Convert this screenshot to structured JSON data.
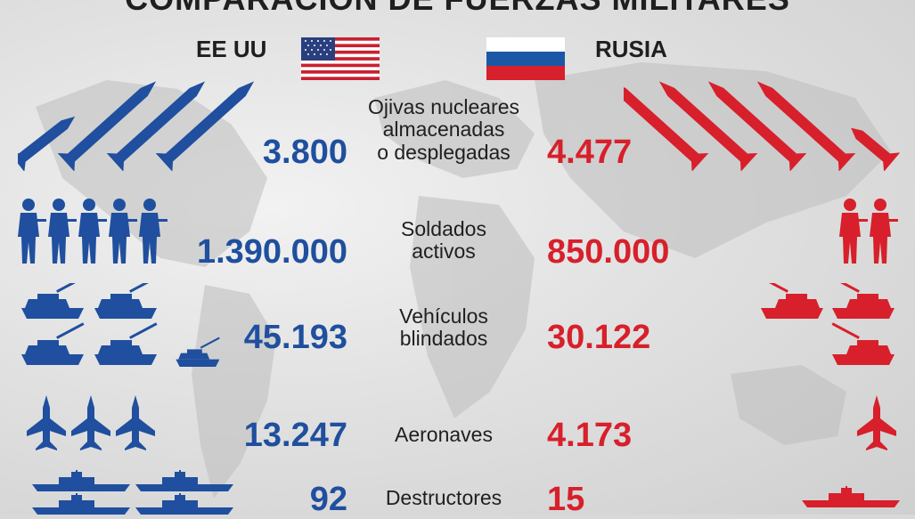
{
  "title": "COMPARACIÓN DE FUERZAS MILITARES",
  "usa": {
    "name": "EE UU",
    "flag": "us-flag",
    "color": "#1f4f9e"
  },
  "russia": {
    "name": "RUSIA",
    "flag": "russia-flag",
    "color": "#d7202b"
  },
  "rows": [
    {
      "label_lines": [
        "Ojivas nucleares",
        "almacenadas",
        "o desplegadas"
      ],
      "usa": "3.800",
      "russia": "4.477",
      "icon": "missile-icon"
    },
    {
      "label_lines": [
        "Soldados",
        "activos"
      ],
      "usa": "1.390.000",
      "russia": "850.000",
      "icon": "soldier-icon"
    },
    {
      "label_lines": [
        "Vehículos",
        "blindados"
      ],
      "usa": "45.193",
      "russia": "30.122",
      "icon": "tank-icon"
    },
    {
      "label_lines": [
        "Aeronaves"
      ],
      "usa": "13.247",
      "russia": "4.173",
      "icon": "jet-icon"
    },
    {
      "label_lines": [
        "Destructores"
      ],
      "usa": "92",
      "russia": "15",
      "icon": "ship-icon"
    }
  ]
}
